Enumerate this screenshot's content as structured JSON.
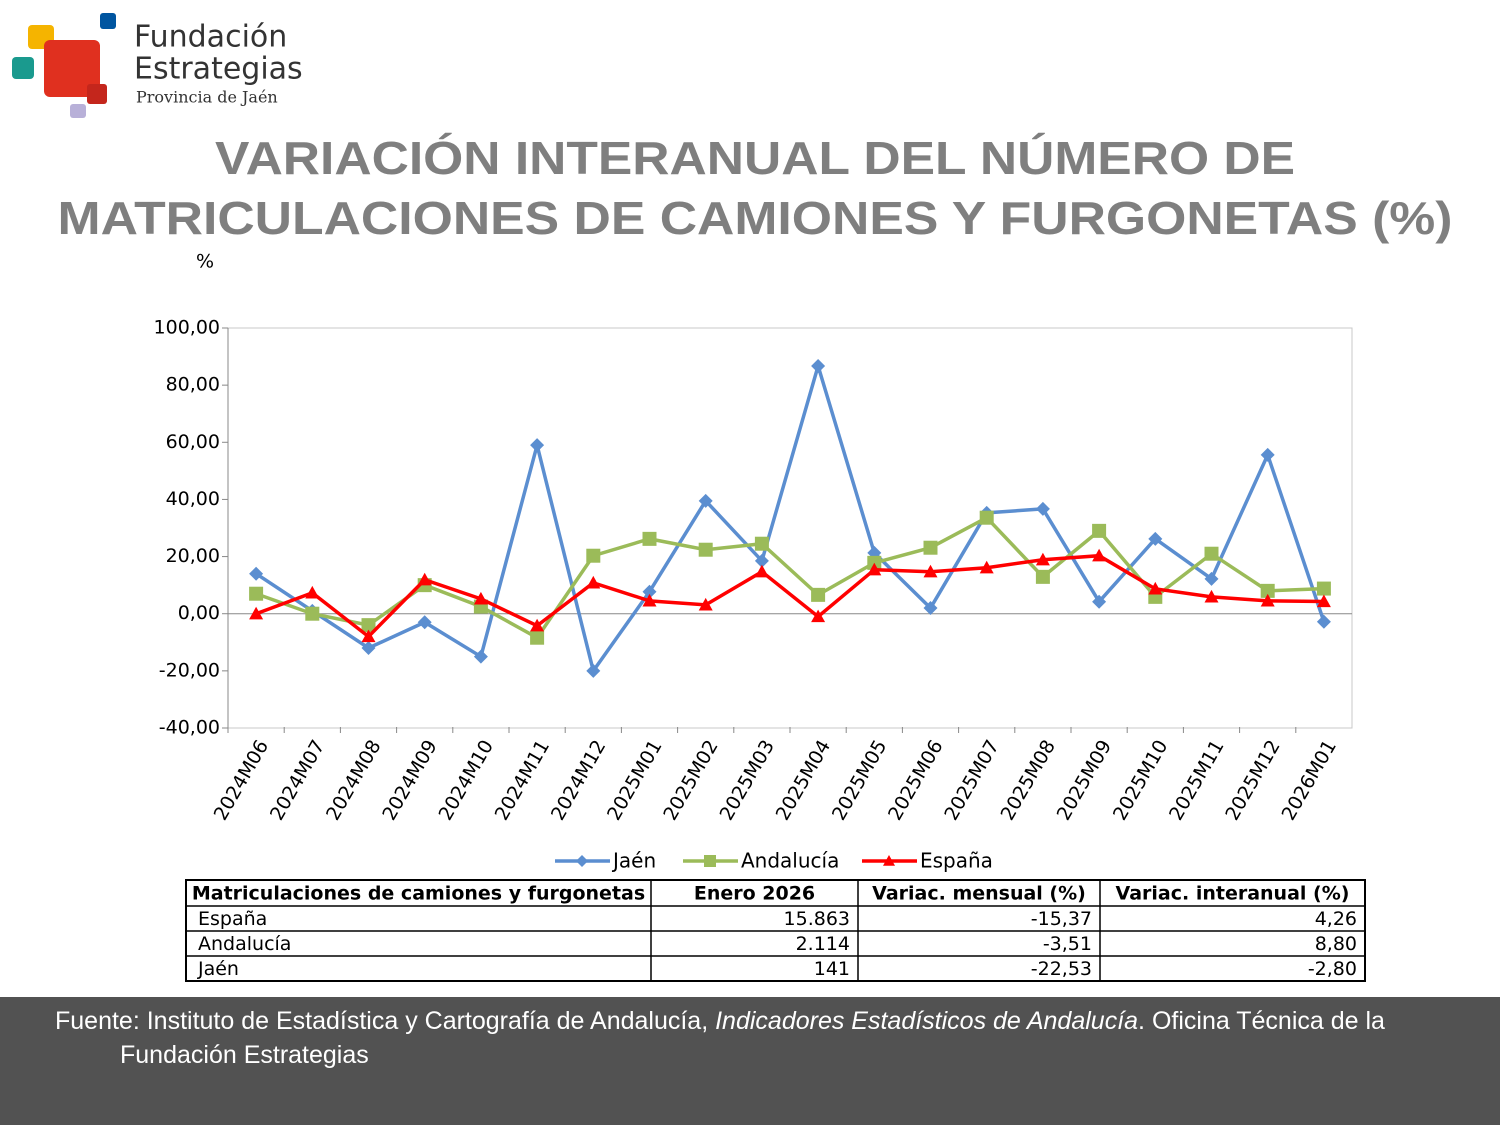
{
  "logo": {
    "line1": "Fundación",
    "line2": "Estrategias",
    "line3": "Provincia de Jaén"
  },
  "chart_data": {
    "type": "line",
    "title": [
      "VARIACIÓN INTERANUAL DEL NÚMERO DE",
      "MATRICULACIONES DE CAMIONES Y FURGONETAS (%)"
    ],
    "y_label": "%",
    "categories": [
      "2024M06",
      "2024M07",
      "2024M08",
      "2024M09",
      "2024M10",
      "2024M11",
      "2024M12",
      "2025M01",
      "2025M02",
      "2025M03",
      "2025M04",
      "2025M05",
      "2025M06",
      "2025M07",
      "2025M08",
      "2025M09",
      "2025M10",
      "2025M11",
      "2025M12",
      "2026M01"
    ],
    "series": [
      {
        "name": "Jaén",
        "color": "#5b8ed0",
        "marker": "diamond",
        "values": [
          14,
          1,
          -12,
          -3,
          -15,
          59,
          -20,
          7.7,
          39.5,
          18.5,
          86.7,
          21.3,
          2,
          35.3,
          36.7,
          4.2,
          26.2,
          12.2,
          55.6,
          -2.8
        ]
      },
      {
        "name": "Andalucía",
        "color": "#9bbb59",
        "marker": "square",
        "values": [
          7,
          0,
          -4,
          10,
          2.5,
          -8.4,
          20.3,
          26.2,
          22.4,
          24.5,
          6.6,
          17.8,
          23.1,
          33.6,
          12.9,
          29,
          5.9,
          21,
          8,
          8.8
        ]
      },
      {
        "name": "España",
        "color": "#ff0000",
        "marker": "triangle",
        "values": [
          0,
          7.3,
          -8,
          11.9,
          5.2,
          -4.2,
          10.8,
          4.5,
          3.1,
          14.7,
          -1,
          15.4,
          14.7,
          16.1,
          18.9,
          20.3,
          8.7,
          5.9,
          4.5,
          4.26
        ]
      }
    ],
    "ylim": [
      -40,
      100
    ],
    "yticks": [
      {
        "value": -40,
        "label": "-40,00"
      },
      {
        "value": -20,
        "label": "-20,00"
      },
      {
        "value": 0,
        "label": "0,00"
      },
      {
        "value": 20,
        "label": "20,00"
      },
      {
        "value": 40,
        "label": "40,00"
      },
      {
        "value": 60,
        "label": "60,00"
      },
      {
        "value": 80,
        "label": "80,00"
      },
      {
        "value": 100,
        "label": "100,00"
      }
    ],
    "grid": false,
    "legend": "bottom"
  },
  "table": {
    "header": [
      "Matriculaciones de camiones y furgonetas",
      "Enero 2026",
      "Variac. mensual (%)",
      "Variac. interanual (%)"
    ],
    "rows": [
      [
        "España",
        "15.863",
        "-15,37",
        "4,26"
      ],
      [
        "Andalucía",
        "2.114",
        "-3,51",
        "8,80"
      ],
      [
        "Jaén",
        "141",
        "-22,53",
        "-2,80"
      ]
    ]
  },
  "source": {
    "prefix": "Fuente: Instituto de Estadística y Cartografía de Andalucía, ",
    "italic": "Indicadores Estadísticos de Andalucía",
    "suffix": ". Oficina Técnica de la Fundación Estrategias"
  }
}
